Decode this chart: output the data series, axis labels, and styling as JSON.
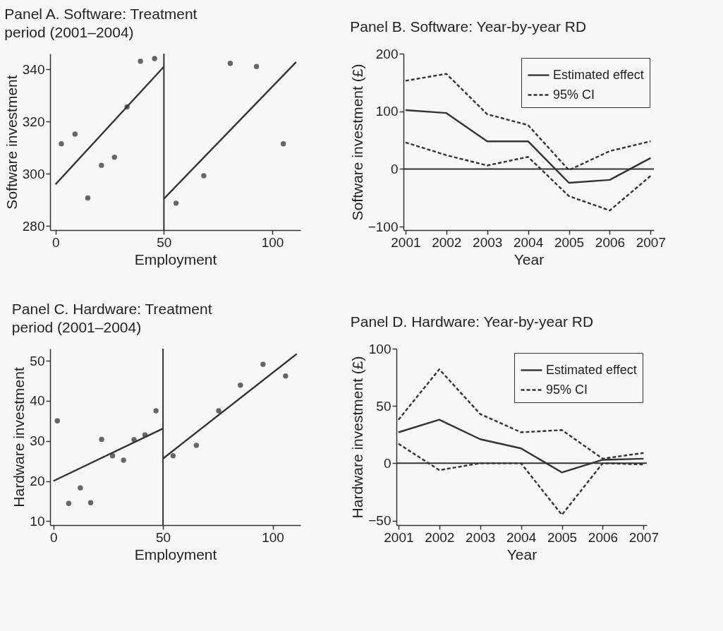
{
  "chart_data": [
    {
      "type": "scatter",
      "title": "Panel A. Software: Treatment period (2001–2004)",
      "xlabel": "Employment",
      "ylabel": "Software investment",
      "xlim": [
        -2.5,
        113
      ],
      "ylim": [
        278.5,
        346
      ],
      "xticks": [
        0,
        50,
        100
      ],
      "yticks": [
        280,
        300,
        320,
        340
      ],
      "grid": false,
      "ref_lines": [
        {
          "axis": "x",
          "value": 50,
          "color": "#333333"
        }
      ],
      "series": [
        {
          "marker": "circle",
          "color": "#666666",
          "x": [
            2.7,
            9.0,
            14.9,
            21.2,
            27.2,
            33.0,
            39.2,
            45.7,
            55.6,
            68.4,
            80.6,
            92.7,
            105.1
          ],
          "values": [
            311.5,
            315.2,
            290.8,
            303.3,
            306.4,
            325.6,
            343.1,
            344.1,
            288.8,
            299.3,
            342.3,
            341.1,
            311.5
          ]
        },
        {
          "type": "line",
          "color": "#333333",
          "line_style": "solid",
          "x": [
            0,
            50
          ],
          "values": [
            296,
            341
          ]
        },
        {
          "type": "line",
          "color": "#333333",
          "line_style": "solid",
          "x": [
            50,
            111
          ],
          "values": [
            290.5,
            342.8
          ]
        }
      ]
    },
    {
      "type": "line",
      "title": "Panel B. Software: Year-by-year RD",
      "xlabel": "Year",
      "ylabel": "Software investment (£)",
      "x": [
        2001,
        2002,
        2003,
        2004,
        2005,
        2006,
        2007
      ],
      "xlim": [
        2000.95,
        2007.08
      ],
      "ylim": [
        -106,
        200
      ],
      "xticks": [
        2001,
        2002,
        2003,
        2004,
        2005,
        2006,
        2007
      ],
      "yticks": [
        -100,
        0,
        100,
        200
      ],
      "grid": false,
      "legend": "top right",
      "ref_lines": [
        {
          "axis": "y",
          "value": 0,
          "color": "#333333"
        }
      ],
      "series": [
        {
          "name": "Estimated effect",
          "color": "#333333",
          "line_style": "solid",
          "values": [
            102,
            97,
            48,
            48,
            -24,
            -19,
            19
          ]
        },
        {
          "name": "95% CI",
          "color": "#333333",
          "line_style": "dashed",
          "values": [
            153,
            165,
            95,
            76,
            -2,
            31,
            48
          ]
        },
        {
          "color": "#333333",
          "line_style": "dashed",
          "values": [
            46,
            24,
            6,
            21,
            -47,
            -72,
            -12
          ]
        }
      ]
    },
    {
      "type": "scatter",
      "title": "Panel C. Hardware: Treatment period (2001–2004)",
      "xlabel": "Employment",
      "ylabel": "Hardware investment",
      "xlim": [
        -1.5,
        112.7
      ],
      "ylim": [
        9,
        53
      ],
      "xticks": [
        0,
        50,
        100
      ],
      "yticks": [
        10,
        20,
        30,
        40,
        50
      ],
      "grid": false,
      "ref_lines": [
        {
          "axis": "x",
          "value": 50,
          "color": "#333333"
        }
      ],
      "series": [
        {
          "marker": "circle",
          "color": "#666666",
          "x": [
            1.8,
            7.0,
            12.3,
            17.0,
            22.0,
            27.0,
            32.0,
            36.8,
            41.8,
            46.8,
            54.6,
            65.2,
            75.4,
            85.3,
            95.6,
            105.9
          ],
          "values": [
            35.0,
            14.4,
            18.3,
            14.6,
            30.4,
            26.3,
            25.2,
            30.3,
            31.5,
            37.5,
            26.3,
            28.9,
            37.5,
            43.9,
            49.1,
            46.2
          ]
        },
        {
          "type": "line",
          "color": "#333333",
          "line_style": "solid",
          "x": [
            0,
            50
          ],
          "values": [
            20,
            33.1
          ]
        },
        {
          "type": "line",
          "color": "#333333",
          "line_style": "solid",
          "x": [
            50,
            111
          ],
          "values": [
            25.6,
            51.7
          ]
        }
      ]
    },
    {
      "type": "line",
      "title": "Panel D. Hardware: Year-by-year RD",
      "xlabel": "Year",
      "ylabel": "Hardware investment (£)",
      "x": [
        2001,
        2002,
        2003,
        2004,
        2005,
        2006,
        2007
      ],
      "xlim": [
        2000.95,
        2007.08
      ],
      "ylim": [
        -54,
        100
      ],
      "xticks": [
        2001,
        2002,
        2003,
        2004,
        2005,
        2006,
        2007
      ],
      "yticks": [
        -50,
        0,
        50,
        100
      ],
      "grid": false,
      "legend": "top right",
      "ref_lines": [
        {
          "axis": "y",
          "value": 0,
          "color": "#333333"
        }
      ],
      "series": [
        {
          "name": "Estimated effect",
          "color": "#333333",
          "line_style": "solid",
          "values": [
            27,
            38,
            21,
            13,
            -8,
            3,
            4
          ]
        },
        {
          "name": "95% CI",
          "color": "#333333",
          "line_style": "dashed",
          "values": [
            38,
            82,
            43,
            27,
            29,
            4,
            9
          ]
        },
        {
          "color": "#333333",
          "line_style": "dashed",
          "values": [
            17,
            -6,
            0,
            0,
            -45,
            0,
            -1
          ]
        }
      ]
    }
  ]
}
